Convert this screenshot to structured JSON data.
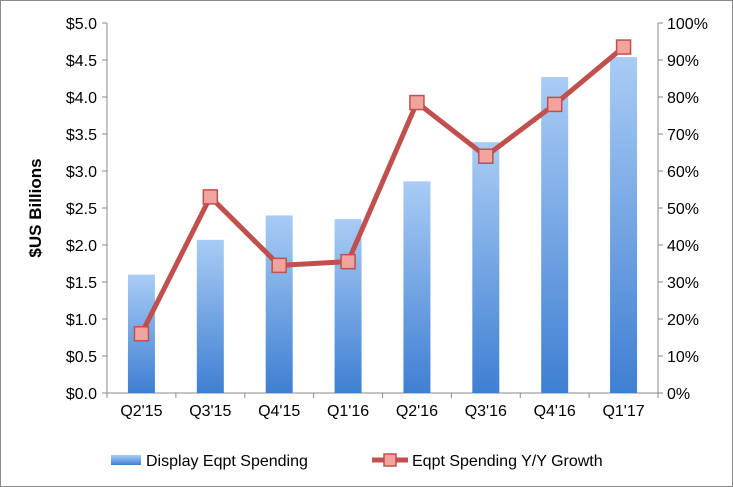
{
  "chart_data": {
    "type": "bar",
    "title": "",
    "categories": [
      "Q2'15",
      "Q3'15",
      "Q4'15",
      "Q1'16",
      "Q2'16",
      "Q3'16",
      "Q4'16",
      "Q1'17"
    ],
    "series": [
      {
        "name": "Display Eqpt Spending",
        "type": "bar",
        "axis": "left",
        "values": [
          1.6,
          2.07,
          2.4,
          2.35,
          2.86,
          3.39,
          4.27,
          4.54
        ]
      },
      {
        "name": "Eqpt Spending Y/Y Growth",
        "type": "line",
        "axis": "right",
        "values": [
          0.16,
          0.53,
          0.345,
          0.355,
          0.785,
          0.64,
          0.78,
          0.935
        ]
      }
    ],
    "ylabel": "$US Billions",
    "ylim": [
      0,
      5
    ],
    "y_ticks": [
      "$0.0",
      "$0.5",
      "$1.0",
      "$1.5",
      "$2.0",
      "$2.5",
      "$3.0",
      "$3.5",
      "$4.0",
      "$4.5",
      "$5.0"
    ],
    "y2lim": [
      0,
      1
    ],
    "y2_ticks": [
      "0%",
      "10%",
      "20%",
      "30%",
      "40%",
      "50%",
      "60%",
      "70%",
      "80%",
      "90%",
      "100%"
    ],
    "grid": false,
    "legend_position": "bottom",
    "colors": {
      "bar_top": "#a9ccf5",
      "bar_bottom": "#3f7fd2",
      "line": "#c0504d",
      "marker_fill": "#f2a3a0",
      "axis": "#8a8a8a"
    }
  }
}
